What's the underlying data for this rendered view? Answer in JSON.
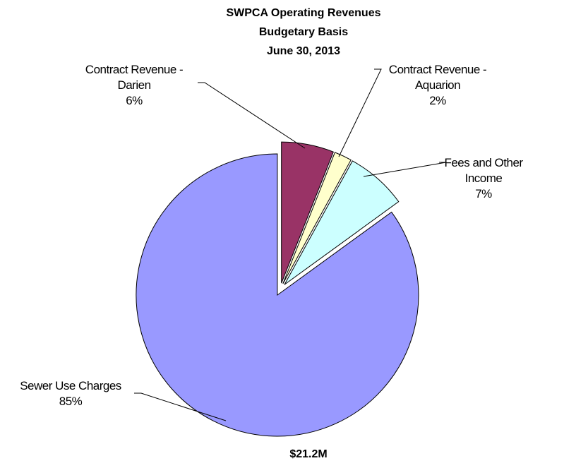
{
  "chart_data": {
    "type": "pie",
    "title": [
      "SWPCA Operating  Revenues",
      "Budgetary Basis",
      "June 30, 2013"
    ],
    "categories": [
      "Contract Revenue - Darien",
      "Contract Revenue - Aquarion",
      "Fees and Other Income",
      "Sewer Use Charges"
    ],
    "values": [
      6,
      2,
      7,
      85
    ],
    "value_labels": [
      "6%",
      "2%",
      "7%",
      "85%"
    ],
    "colors": [
      "#993366",
      "#ffffcc",
      "#ccffff",
      "#9999ff"
    ],
    "annotations": [
      "$21.2M"
    ]
  }
}
